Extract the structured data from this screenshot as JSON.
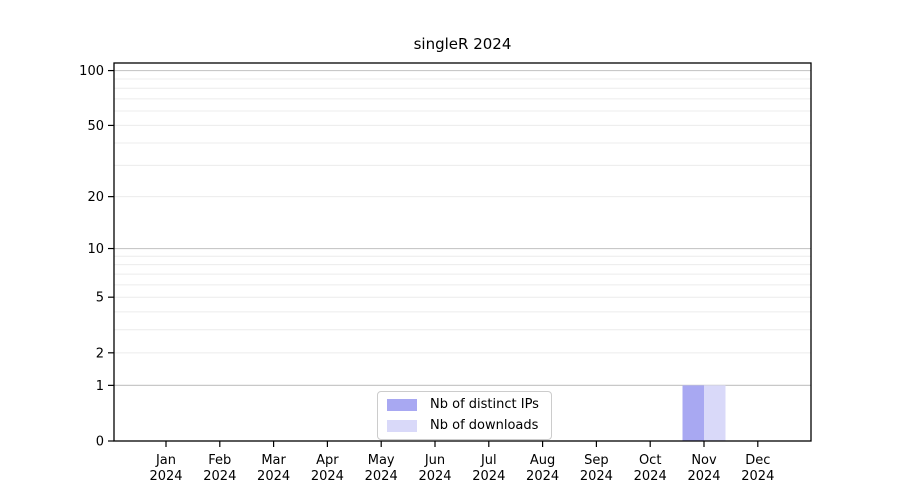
{
  "chart_data": {
    "type": "bar",
    "title": "singleR 2024",
    "categories": [
      {
        "month": "Jan",
        "year": "2024"
      },
      {
        "month": "Feb",
        "year": "2024"
      },
      {
        "month": "Mar",
        "year": "2024"
      },
      {
        "month": "Apr",
        "year": "2024"
      },
      {
        "month": "May",
        "year": "2024"
      },
      {
        "month": "Jun",
        "year": "2024"
      },
      {
        "month": "Jul",
        "year": "2024"
      },
      {
        "month": "Aug",
        "year": "2024"
      },
      {
        "month": "Sep",
        "year": "2024"
      },
      {
        "month": "Oct",
        "year": "2024"
      },
      {
        "month": "Nov",
        "year": "2024"
      },
      {
        "month": "Dec",
        "year": "2024"
      }
    ],
    "series": [
      {
        "name": "Nb of distinct IPs",
        "color": "#a8a8f2",
        "values": [
          0,
          0,
          0,
          0,
          0,
          0,
          0,
          0,
          0,
          0,
          1,
          0
        ]
      },
      {
        "name": "Nb of downloads",
        "color": "#d9d9f9",
        "values": [
          0,
          0,
          0,
          0,
          0,
          0,
          0,
          0,
          0,
          0,
          1,
          0
        ]
      }
    ],
    "xlabel": "",
    "ylabel": "",
    "yscale": "log1p",
    "ylim": [
      0,
      110
    ],
    "yticks": [
      0,
      1,
      2,
      5,
      10,
      20,
      50,
      100
    ],
    "major_gridlines": [
      1,
      10,
      100
    ],
    "minor_gridlines": [
      2,
      3,
      4,
      5,
      6,
      7,
      8,
      9,
      20,
      30,
      40,
      50,
      60,
      70,
      80,
      90
    ],
    "grid": "on",
    "legend_position": "lower center inside plot"
  },
  "colors": {
    "axis": "#000000",
    "major_grid": "#c8c8c8",
    "minor_grid": "#ececec",
    "background": "#ffffff",
    "legend_border": "#cccccc"
  }
}
